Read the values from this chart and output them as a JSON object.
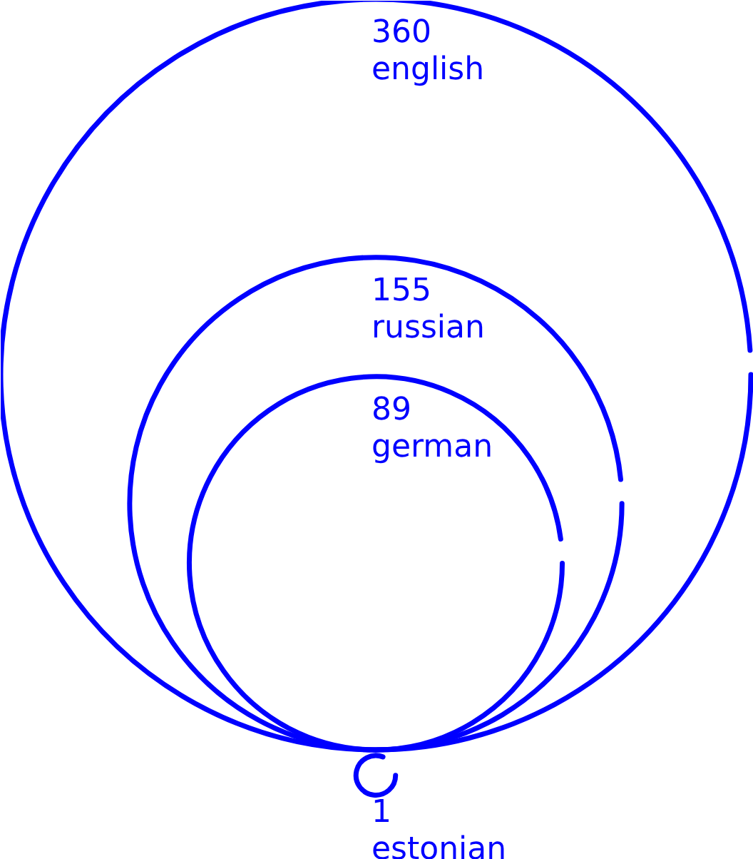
{
  "chart_data": {
    "type": "other",
    "categories": [
      "english",
      "russian",
      "german",
      "estonian"
    ],
    "values": [
      360,
      155,
      89,
      1
    ],
    "color": "#0000ff",
    "data_labels": true
  }
}
